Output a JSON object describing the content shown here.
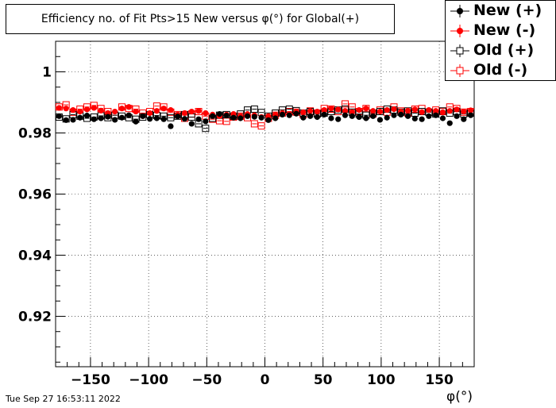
{
  "chart_data": {
    "type": "scatter",
    "title": "Efficiency no. of Fit Pts>15 New versus φ(°) for Global(+)",
    "xlabel": "φ(°)",
    "ylabel": "",
    "xlim": [
      -180,
      180
    ],
    "ylim": [
      0.9035,
      1.01
    ],
    "xticks": [
      -150,
      -100,
      -50,
      0,
      50,
      100,
      150
    ],
    "xtick_labels": [
      "−150",
      "−100",
      "−50",
      "0",
      "50",
      "100",
      "150"
    ],
    "yticks": [
      0.92,
      0.94,
      0.96,
      0.98,
      1
    ],
    "ytick_labels": [
      "0.92",
      "0.94",
      "0.96",
      "0.98",
      "1"
    ],
    "grid": true,
    "legend_position": "top-right",
    "x": [
      -177,
      -171,
      -165,
      -159,
      -153,
      -147,
      -141,
      -135,
      -129,
      -123,
      -117,
      -111,
      -105,
      -99,
      -93,
      -87,
      -81,
      -75,
      -69,
      -63,
      -57,
      -51,
      -45,
      -39,
      -33,
      -27,
      -21,
      -15,
      -9,
      -3,
      3,
      9,
      15,
      21,
      27,
      33,
      39,
      45,
      51,
      57,
      63,
      69,
      75,
      81,
      87,
      93,
      99,
      105,
      111,
      117,
      123,
      129,
      135,
      141,
      147,
      153,
      159,
      165,
      171,
      177
    ],
    "series": [
      {
        "name": "New (+)",
        "marker": "filled-circle",
        "color": "#000000",
        "values": [
          0.9855,
          0.9842,
          0.9843,
          0.985,
          0.9857,
          0.9845,
          0.9848,
          0.9853,
          0.9843,
          0.985,
          0.9858,
          0.9837,
          0.9855,
          0.9846,
          0.9848,
          0.9845,
          0.9822,
          0.9854,
          0.9846,
          0.983,
          0.9845,
          0.9838,
          0.9855,
          0.9862,
          0.9857,
          0.985,
          0.9848,
          0.9855,
          0.9853,
          0.985,
          0.9842,
          0.9848,
          0.986,
          0.9858,
          0.9863,
          0.985,
          0.9855,
          0.9852,
          0.986,
          0.9848,
          0.9845,
          0.9858,
          0.9855,
          0.9852,
          0.9848,
          0.9855,
          0.9843,
          0.985,
          0.9858,
          0.986,
          0.9855,
          0.9847,
          0.9845,
          0.9855,
          0.9858,
          0.9848,
          0.9832,
          0.9855,
          0.9845,
          0.9858
        ]
      },
      {
        "name": "New (-)",
        "marker": "filled-circle",
        "color": "#ff0000",
        "values": [
          0.9882,
          0.988,
          0.9875,
          0.987,
          0.9877,
          0.9882,
          0.9873,
          0.9865,
          0.987,
          0.988,
          0.9885,
          0.987,
          0.9855,
          0.9865,
          0.9872,
          0.988,
          0.9875,
          0.986,
          0.9865,
          0.987,
          0.9872,
          0.9865,
          0.986,
          0.9855,
          0.986,
          0.9862,
          0.9855,
          0.9862,
          0.9858,
          0.9852,
          0.9855,
          0.986,
          0.9865,
          0.9862,
          0.987,
          0.9868,
          0.9872,
          0.987,
          0.9875,
          0.988,
          0.9877,
          0.9872,
          0.9868,
          0.9875,
          0.988,
          0.9872,
          0.987,
          0.9875,
          0.9878,
          0.987,
          0.9873,
          0.9877,
          0.9868,
          0.9875,
          0.9872,
          0.9868,
          0.9872,
          0.9877,
          0.987,
          0.9874
        ]
      },
      {
        "name": "Old (+)",
        "marker": "open-square",
        "color": "#000000",
        "values": [
          0.9852,
          0.9846,
          0.986,
          0.9855,
          0.9848,
          0.9852,
          0.9856,
          0.985,
          0.9858,
          0.9855,
          0.985,
          0.9845,
          0.9852,
          0.986,
          0.9857,
          0.9855,
          0.985,
          0.9855,
          0.986,
          0.9852,
          0.983,
          0.9815,
          0.9848,
          0.9858,
          0.986,
          0.9855,
          0.9862,
          0.9875,
          0.9878,
          0.9867,
          0.9855,
          0.9865,
          0.9875,
          0.9878,
          0.9873,
          0.9865,
          0.987,
          0.9862,
          0.9865,
          0.987,
          0.9875,
          0.9878,
          0.9868,
          0.9862,
          0.9858,
          0.9865,
          0.987,
          0.9878,
          0.9875,
          0.9868,
          0.9872,
          0.9865,
          0.987,
          0.9868,
          0.9862,
          0.9872,
          0.9865,
          0.987,
          0.9862,
          0.9865
        ]
      },
      {
        "name": "Old (-)",
        "marker": "open-square",
        "color": "#ff0000",
        "values": [
          0.9885,
          0.9892,
          0.9868,
          0.9878,
          0.9885,
          0.989,
          0.988,
          0.987,
          0.9858,
          0.9885,
          0.988,
          0.9878,
          0.9865,
          0.987,
          0.9888,
          0.9885,
          0.9868,
          0.986,
          0.9848,
          0.9862,
          0.987,
          0.9855,
          0.9845,
          0.984,
          0.9838,
          0.9852,
          0.9855,
          0.985,
          0.983,
          0.9823,
          0.9848,
          0.9858,
          0.9865,
          0.987,
          0.9868,
          0.986,
          0.9872,
          0.9865,
          0.988,
          0.9878,
          0.987,
          0.9895,
          0.9885,
          0.987,
          0.988,
          0.9862,
          0.9875,
          0.9868,
          0.9885,
          0.9872,
          0.9865,
          0.9878,
          0.988,
          0.9868,
          0.9875,
          0.987,
          0.9885,
          0.988,
          0.9868,
          0.987
        ]
      }
    ]
  },
  "footer": {
    "timestamp": "Tue Sep 27 16:53:11 2022"
  }
}
